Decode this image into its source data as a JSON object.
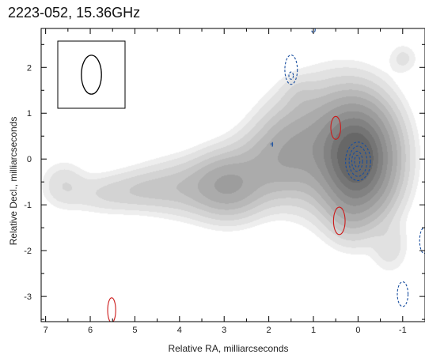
{
  "chart_data": {
    "type": "heatmap",
    "title": "2223-052, 15.36GHz",
    "xlabel": "Relative RA, milliarcseconds",
    "ylabel": "Relative Decl., milliarcseconds",
    "xlim": [
      7.1,
      -1.5
    ],
    "ylim": [
      -3.55,
      2.85
    ],
    "x_ticks": [
      7,
      6,
      5,
      4,
      3,
      2,
      1,
      0,
      -1
    ],
    "y_ticks": [
      2,
      1,
      0,
      -1,
      -2,
      -3
    ],
    "grid": false,
    "colors": {
      "image": "greyscale",
      "positive_contours": "#1a4fa0",
      "negative_contours": "#cc1a1a",
      "beam": "#000000"
    },
    "beam": {
      "major_mas": 0.85,
      "minor_mas": 0.45,
      "position_angle_deg": 0,
      "location": "top-left"
    },
    "components": [
      {
        "x": 0.0,
        "y": 0.0,
        "sx": 0.45,
        "sy": 0.65,
        "peak": 1.0
      },
      {
        "x": 0.55,
        "y": 0.3,
        "sx": 0.6,
        "sy": 0.7,
        "peak": 0.28
      },
      {
        "x": 1.5,
        "y": 0.2,
        "sx": 0.45,
        "sy": 0.55,
        "peak": 0.18
      },
      {
        "x": 2.1,
        "y": -0.15,
        "sx": 0.45,
        "sy": 0.45,
        "peak": 0.12
      },
      {
        "x": 2.9,
        "y": -0.55,
        "sx": 0.45,
        "sy": 0.4,
        "peak": 0.22
      },
      {
        "x": 3.6,
        "y": -0.6,
        "sx": 0.7,
        "sy": 0.35,
        "peak": 0.1
      },
      {
        "x": 4.7,
        "y": -0.65,
        "sx": 0.5,
        "sy": 0.25,
        "peak": 0.05
      },
      {
        "x": 5.6,
        "y": -0.75,
        "sx": 0.55,
        "sy": 0.25,
        "peak": 0.04
      },
      {
        "x": 6.6,
        "y": -0.55,
        "sx": 0.3,
        "sy": 0.3,
        "peak": 0.035
      },
      {
        "x": 0.2,
        "y": -1.1,
        "sx": 0.3,
        "sy": 0.4,
        "peak": 0.06
      },
      {
        "x": -0.7,
        "y": -1.9,
        "sx": 0.25,
        "sy": 0.35,
        "peak": 0.03
      },
      {
        "x": 1.3,
        "y": 1.4,
        "sx": 0.25,
        "sy": 0.25,
        "peak": 0.03
      },
      {
        "x": -1.0,
        "y": 2.2,
        "sx": 0.2,
        "sy": 0.2,
        "peak": 0.025
      }
    ],
    "positive_contours": [
      {
        "x": 0.0,
        "y": -0.05,
        "rx": 0.28,
        "ry": 0.42
      },
      {
        "x": 0.0,
        "y": -0.05,
        "rx": 0.2,
        "ry": 0.33
      },
      {
        "x": 0.02,
        "y": -0.05,
        "rx": 0.12,
        "ry": 0.22
      },
      {
        "x": 0.02,
        "y": -0.05,
        "rx": 0.06,
        "ry": 0.13
      },
      {
        "x": 1.5,
        "y": 1.95,
        "rx": 0.14,
        "ry": 0.32
      },
      {
        "x": 1.5,
        "y": 1.82,
        "rx": 0.05,
        "ry": 0.08
      },
      {
        "x": 1.0,
        "y": 2.82,
        "rx": 0.04,
        "ry": 0.06
      },
      {
        "x": -1.0,
        "y": -2.95,
        "rx": 0.12,
        "ry": 0.27
      },
      {
        "x": -1.48,
        "y": -1.78,
        "rx": 0.1,
        "ry": 0.28
      },
      {
        "x": 1.93,
        "y": 0.32,
        "rx": 0.01,
        "ry": 0.05
      }
    ],
    "negative_contours": [
      {
        "x": 0.5,
        "y": 0.68,
        "rx": 0.11,
        "ry": 0.25
      },
      {
        "x": 0.42,
        "y": -1.35,
        "rx": 0.13,
        "ry": 0.3
      },
      {
        "x": 5.52,
        "y": -3.3,
        "rx": 0.09,
        "ry": 0.27
      }
    ]
  }
}
